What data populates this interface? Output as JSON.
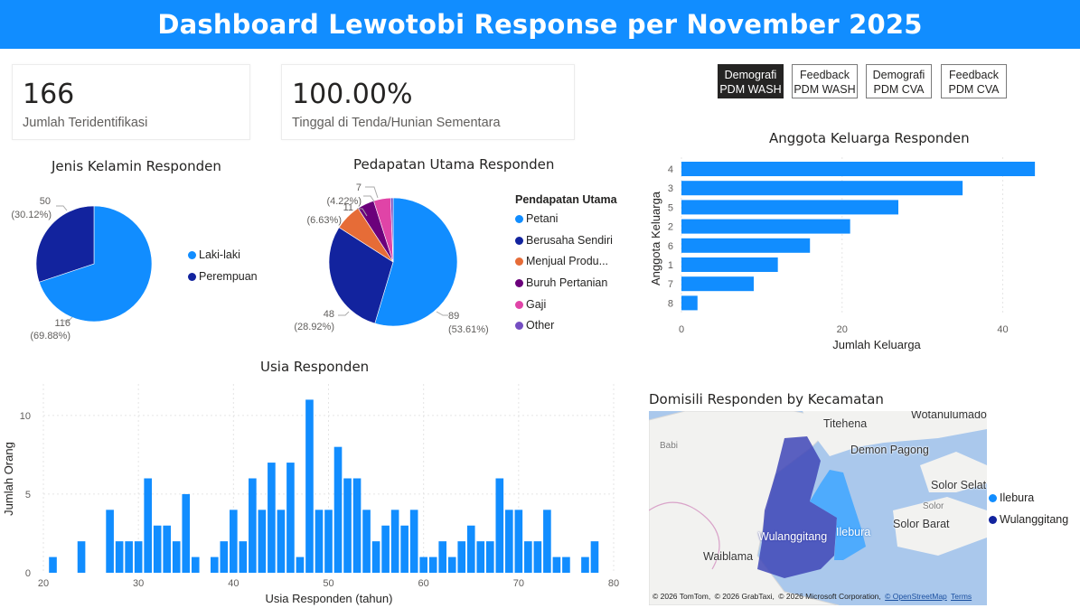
{
  "header": {
    "title": "Dashboard Lewotobi Response per November 2025"
  },
  "kpis": [
    {
      "value": "166",
      "label": "Jumlah Teridentifikasi"
    },
    {
      "value": "100.00%",
      "label": "Tinggal di Tenda/Hunian Sementara"
    }
  ],
  "nav": [
    {
      "line1": "Demografi",
      "line2": "PDM WASH",
      "active": true
    },
    {
      "line1": "Feedback",
      "line2": "PDM WASH",
      "active": false
    },
    {
      "line1": "Demografi",
      "line2": "PDM CVA",
      "active": false
    },
    {
      "line1": "Feedback",
      "line2": "PDM CVA",
      "active": false
    }
  ],
  "colors": {
    "primary": "#118dff",
    "dark_blue": "#12239e",
    "orange": "#e66c37",
    "purple": "#6b007b",
    "pink": "#e044a7",
    "violet": "#744ec2",
    "header_bg": "#118dff"
  },
  "chart_data": [
    {
      "id": "gender",
      "type": "pie",
      "title": "Jenis Kelamin Responden",
      "slices": [
        {
          "name": "Laki-laki",
          "value": 116,
          "label": "116",
          "pct": "(69.88%)",
          "color": "#118dff"
        },
        {
          "name": "Perempuan",
          "value": 50,
          "label": "50",
          "pct": "(30.12%)",
          "color": "#12239e"
        }
      ],
      "legend_position": "right"
    },
    {
      "id": "income",
      "type": "pie",
      "title": "Pedapatan Utama Responden",
      "legend_title": "Pendapatan Utama",
      "legend_position": "right",
      "slices": [
        {
          "name": "Petani",
          "value": 89,
          "label": "89",
          "pct": "(53.61%)",
          "color": "#118dff"
        },
        {
          "name": "Berusaha Sendiri",
          "value": 48,
          "label": "48",
          "pct": "(28.92%)",
          "color": "#12239e"
        },
        {
          "name": "Menjual Produ...",
          "value": 11,
          "label": "11",
          "pct": "(6.63%)",
          "color": "#e66c37"
        },
        {
          "name": "Buruh Pertanian",
          "value": 7,
          "label": "",
          "pct": "",
          "color": "#6b007b"
        },
        {
          "name": "Gaji",
          "value": 7,
          "label": "7",
          "pct": "(4.22%)",
          "color": "#e044a7"
        },
        {
          "name": "Other",
          "value": 1,
          "label": "",
          "pct": "",
          "color": "#744ec2"
        }
      ]
    },
    {
      "id": "household",
      "type": "bar",
      "orientation": "horizontal",
      "title": "Anggota Keluarga Responden",
      "xlabel": "Jumlah Keluarga",
      "ylabel": "Anggota Keluarga",
      "categories": [
        "4",
        "3",
        "5",
        "2",
        "6",
        "1",
        "7",
        "8"
      ],
      "values": [
        44,
        35,
        27,
        21,
        16,
        12,
        9,
        2
      ],
      "xlim": [
        0,
        45
      ],
      "xticks": [
        0,
        20,
        40
      ],
      "grid": true
    },
    {
      "id": "age",
      "type": "bar",
      "title": "Usia Responden",
      "xlabel": "Usia Responden (tahun)",
      "ylabel": "Jumlah Orang",
      "x": [
        21,
        24,
        27,
        28,
        29,
        30,
        31,
        32,
        33,
        34,
        35,
        36,
        38,
        39,
        40,
        41,
        42,
        43,
        44,
        45,
        46,
        47,
        48,
        49,
        50,
        51,
        52,
        53,
        54,
        55,
        56,
        57,
        58,
        59,
        60,
        61,
        62,
        63,
        64,
        65,
        66,
        67,
        68,
        69,
        70,
        71,
        72,
        73,
        74,
        75,
        77,
        78
      ],
      "values": [
        1,
        2,
        4,
        2,
        2,
        2,
        6,
        3,
        3,
        2,
        5,
        1,
        1,
        2,
        4,
        2,
        6,
        4,
        7,
        4,
        7,
        1,
        11,
        4,
        4,
        8,
        6,
        6,
        4,
        2,
        3,
        4,
        3,
        4,
        1,
        1,
        2,
        1,
        2,
        3,
        2,
        2,
        6,
        4,
        4,
        2,
        2,
        4,
        1,
        1,
        1,
        2
      ],
      "xlim": [
        20,
        80
      ],
      "ylim": [
        0,
        12
      ],
      "xticks": [
        20,
        30,
        40,
        50,
        60,
        70,
        80
      ],
      "yticks": [
        0,
        5,
        10
      ],
      "grid": true
    }
  ],
  "map": {
    "title": "Domisili Responden by Kecamatan",
    "labels": {
      "titehena": "Titehena",
      "wotanulumado": "Wotanulumado",
      "babi": "Babi",
      "demon_pagong": "Demon Pagong",
      "solor_selat": "Solor Selat",
      "solor": "Solor",
      "solor_barat": "Solor Barat",
      "waiblama": "Waiblama",
      "wulanggitang": "Wulanggitang",
      "ilebura": "Ilebura"
    },
    "credits": {
      "c1": "© 2026 TomTom,",
      "c2": "© 2026 GrabTaxi,",
      "c3": "© 2026 Microsoft Corporation,",
      "c4": "© OpenStreetMap",
      "c5": "Terms"
    },
    "legend": [
      {
        "name": "Ilebura",
        "color": "#118dff"
      },
      {
        "name": "Wulanggitang",
        "color": "#12239e"
      }
    ]
  }
}
